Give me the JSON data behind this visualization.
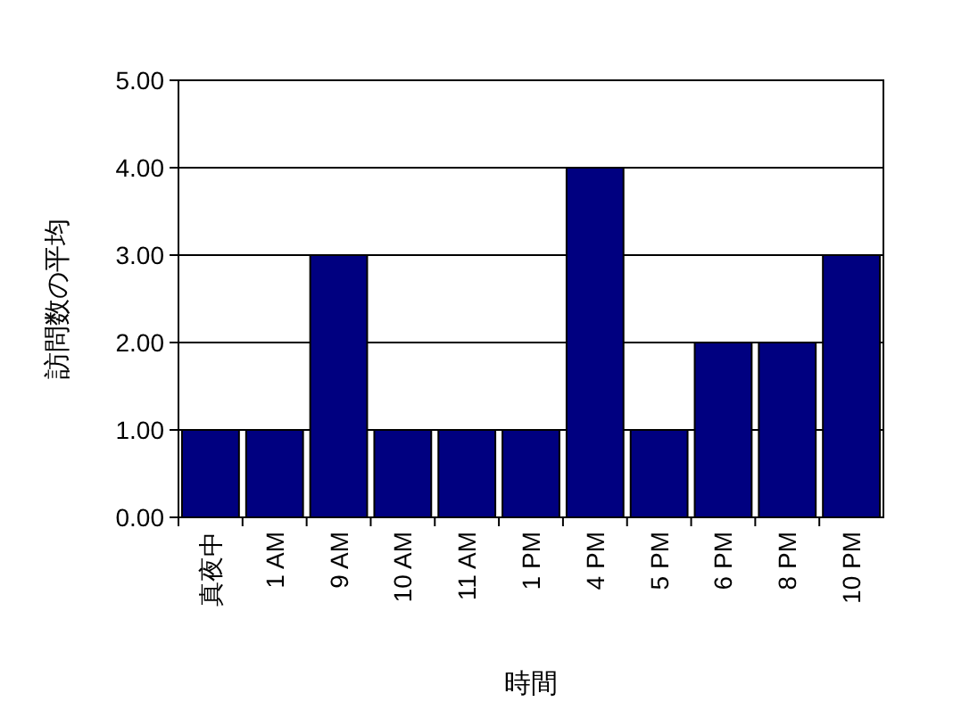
{
  "chart_data": {
    "type": "bar",
    "xlabel": "時間",
    "ylabel": "訪問数の平均",
    "categories": [
      "真夜中",
      "1 AM",
      "9 AM",
      "10 AM",
      "11 AM",
      "1 PM",
      "4 PM",
      "5 PM",
      "6 PM",
      "8 PM",
      "10 PM"
    ],
    "values": [
      1,
      1,
      3,
      1,
      1,
      1,
      4,
      1,
      2,
      2,
      3
    ],
    "color": "#000080",
    "ylim": [
      0,
      5
    ],
    "yticks": [
      {
        "value": 0,
        "label": "0.00"
      },
      {
        "value": 1,
        "label": "1.00"
      },
      {
        "value": 2,
        "label": "2.00"
      },
      {
        "value": 3,
        "label": "3.00"
      },
      {
        "value": 4,
        "label": "4.00"
      },
      {
        "value": 5,
        "label": "5.00"
      }
    ],
    "grid": "y"
  }
}
